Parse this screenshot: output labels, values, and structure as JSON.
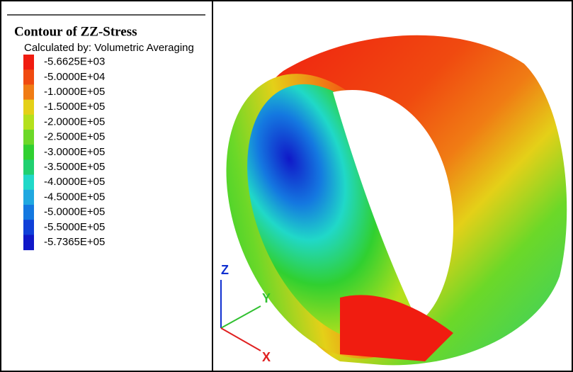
{
  "legend": {
    "title": "Contour of ZZ-Stress",
    "subtitle": "Calculated by: Volumetric Averaging",
    "levels": [
      {
        "label": "-5.6625E+03",
        "color": "#f01c10"
      },
      {
        "label": "-5.0000E+04",
        "color": "#f04a10"
      },
      {
        "label": "-1.0000E+05",
        "color": "#f07c14"
      },
      {
        "label": "-1.5000E+05",
        "color": "#e4d018"
      },
      {
        "label": "-2.0000E+05",
        "color": "#b4e01c"
      },
      {
        "label": "-2.5000E+05",
        "color": "#6cd828"
      },
      {
        "label": "-3.0000E+05",
        "color": "#30d030"
      },
      {
        "label": "-3.5000E+05",
        "color": "#20d070"
      },
      {
        "label": "-4.0000E+05",
        "color": "#20d8c8"
      },
      {
        "label": "-4.5000E+05",
        "color": "#20a8e0"
      },
      {
        "label": "-5.0000E+05",
        "color": "#1478e0"
      },
      {
        "label": "-5.5000E+05",
        "color": "#1040d8"
      },
      {
        "label": "-5.7365E+05",
        "color": "#1018c8"
      }
    ]
  },
  "triad": {
    "z": "Z",
    "y": "Y",
    "x": "X"
  }
}
